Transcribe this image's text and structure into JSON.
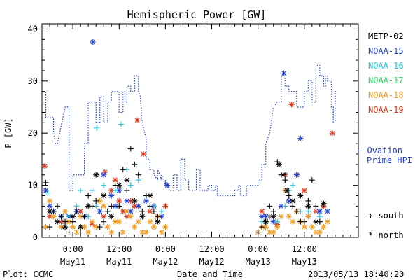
{
  "chart_data": {
    "type": "scatter",
    "title": "Hemispheric Power [GW]",
    "xlabel": "Date and Time",
    "ylabel": "P [GW]",
    "ylim": [
      0,
      41
    ],
    "xlim_hours": [
      -8,
      74
    ],
    "yticks": [
      "0",
      "10",
      "20",
      "30",
      "40"
    ],
    "xticks": [
      {
        "h": 0,
        "top": "0:00",
        "bottom": "May11"
      },
      {
        "h": 12,
        "top": "12:00",
        "bottom": "May11"
      },
      {
        "h": 24,
        "top": "0:00",
        "bottom": "May12"
      },
      {
        "h": 36,
        "top": "12:00",
        "bottom": "May12"
      },
      {
        "h": 48,
        "top": "0:00",
        "bottom": "May13"
      },
      {
        "h": 60,
        "top": "12:00",
        "bottom": "May13"
      }
    ],
    "x_units": "hours relative to 2013-05-11 00:00 UT",
    "legend": [
      {
        "name": "METP-02",
        "color": "#000000"
      },
      {
        "name": "NOAA-15",
        "color": "#1f3fd6"
      },
      {
        "name": "NOAA-16",
        "color": "#22c4e0"
      },
      {
        "name": "NOAA-17",
        "color": "#33dd66"
      },
      {
        "name": "NOAA-18",
        "color": "#f29a1d"
      },
      {
        "name": "NOAA-19",
        "color": "#e0341c"
      }
    ],
    "ovation_label": [
      "— Ovation",
      "Prime HPI"
    ],
    "ovation_color": "#2040d0",
    "marker_legend": [
      {
        "symbol": "+",
        "label": "south"
      },
      {
        "symbol": "*",
        "label": "north"
      }
    ],
    "ovation_series": [
      [
        -7.5,
        28
      ],
      [
        -7,
        28
      ],
      [
        -7,
        23
      ],
      [
        -5,
        23
      ],
      [
        -5,
        20
      ],
      [
        -4.5,
        18
      ],
      [
        -4,
        18
      ],
      [
        -2,
        25
      ],
      [
        -1,
        25
      ],
      [
        -1,
        9
      ],
      [
        0,
        9
      ],
      [
        0,
        12
      ],
      [
        3,
        12
      ],
      [
        3,
        18
      ],
      [
        4,
        18
      ],
      [
        4,
        26
      ],
      [
        6,
        26
      ],
      [
        6,
        22
      ],
      [
        7,
        22
      ],
      [
        7,
        27
      ],
      [
        8,
        27
      ],
      [
        8,
        22
      ],
      [
        9,
        22
      ],
      [
        9,
        26
      ],
      [
        10,
        26
      ],
      [
        10,
        28
      ],
      [
        12,
        28
      ],
      [
        12,
        24
      ],
      [
        13,
        24
      ],
      [
        13,
        28
      ],
      [
        13.5,
        28
      ],
      [
        13.5,
        26
      ],
      [
        14,
        26
      ],
      [
        14,
        29
      ],
      [
        15,
        29
      ],
      [
        15,
        28
      ],
      [
        16,
        28
      ],
      [
        16,
        31
      ],
      [
        17,
        31
      ],
      [
        17,
        28
      ],
      [
        17.5,
        27
      ],
      [
        18,
        22
      ],
      [
        19,
        19
      ],
      [
        19,
        15
      ],
      [
        20,
        15
      ],
      [
        20,
        13
      ],
      [
        21,
        13
      ],
      [
        21,
        12
      ],
      [
        22,
        11
      ],
      [
        22,
        13
      ],
      [
        23,
        11
      ],
      [
        23,
        12
      ],
      [
        24,
        10
      ],
      [
        24,
        11
      ],
      [
        25,
        9
      ],
      [
        26,
        9
      ],
      [
        26,
        12
      ],
      [
        27,
        12
      ],
      [
        27,
        9
      ],
      [
        28,
        9
      ],
      [
        28,
        15
      ],
      [
        29,
        15
      ],
      [
        29,
        11
      ],
      [
        30,
        11
      ],
      [
        30,
        9
      ],
      [
        32,
        9
      ],
      [
        32,
        13
      ],
      [
        33,
        13
      ],
      [
        33,
        9
      ],
      [
        35,
        9
      ],
      [
        35,
        10
      ],
      [
        36,
        10
      ],
      [
        36,
        9
      ],
      [
        37,
        9
      ],
      [
        37,
        10
      ],
      [
        37.5,
        10
      ],
      [
        37.5,
        8
      ],
      [
        42,
        8
      ],
      [
        42,
        9
      ],
      [
        43,
        9
      ],
      [
        43,
        10
      ],
      [
        43.5,
        10
      ],
      [
        43.5,
        8
      ],
      [
        45,
        8
      ],
      [
        45,
        10
      ],
      [
        48,
        10
      ],
      [
        48,
        11
      ],
      [
        49,
        11
      ],
      [
        49,
        14
      ],
      [
        50,
        14
      ],
      [
        50,
        18
      ],
      [
        51,
        20
      ],
      [
        52,
        25
      ],
      [
        53,
        26
      ],
      [
        54,
        26
      ],
      [
        54,
        31
      ],
      [
        55,
        31
      ],
      [
        55,
        29
      ],
      [
        56,
        29
      ],
      [
        56,
        28
      ],
      [
        58,
        28
      ],
      [
        58,
        25
      ],
      [
        60,
        25
      ],
      [
        60,
        28
      ],
      [
        61,
        28
      ],
      [
        61,
        30
      ],
      [
        62,
        30
      ],
      [
        62,
        26
      ],
      [
        63,
        26
      ],
      [
        63,
        33
      ],
      [
        64,
        33
      ],
      [
        64,
        31
      ],
      [
        65,
        31
      ],
      [
        65,
        29
      ],
      [
        65.5,
        29
      ],
      [
        65.5,
        31
      ],
      [
        66,
        31
      ],
      [
        66,
        30
      ],
      [
        67,
        30
      ],
      [
        67,
        25
      ],
      [
        67.5,
        25
      ],
      [
        67.5,
        22
      ],
      [
        68,
        22
      ],
      [
        68,
        28
      ],
      [
        68.5,
        28
      ]
    ],
    "observations": [
      {
        "sat": "NOAA-19",
        "marker": "*",
        "points": [
          [
            -7.3,
            13.7
          ],
          [
            -6,
            4
          ],
          [
            -3,
            3
          ],
          [
            -1,
            3
          ],
          [
            2,
            5
          ],
          [
            5,
            2.5
          ],
          [
            8,
            4
          ],
          [
            8.3,
            12.5
          ],
          [
            10,
            9
          ],
          [
            11,
            11
          ],
          [
            12,
            7
          ],
          [
            13,
            5
          ],
          [
            14,
            4
          ],
          [
            15,
            7
          ],
          [
            16,
            6
          ],
          [
            16.7,
            22.5
          ],
          [
            18.3,
            16
          ],
          [
            20,
            5
          ],
          [
            22,
            4
          ],
          [
            24,
            6
          ],
          [
            49,
            5
          ],
          [
            51,
            4
          ],
          [
            53,
            2.5
          ],
          [
            55,
            12
          ],
          [
            56.7,
            25.5
          ],
          [
            58,
            12
          ],
          [
            60,
            9
          ],
          [
            63,
            5
          ],
          [
            65,
            6
          ],
          [
            67.3,
            20
          ]
        ]
      },
      {
        "sat": "NOAA-15",
        "marker": "*",
        "points": [
          [
            -7,
            9
          ],
          [
            -6,
            6
          ],
          [
            -5,
            5
          ],
          [
            -3,
            4
          ],
          [
            -1,
            4
          ],
          [
            1,
            5
          ],
          [
            3,
            4
          ],
          [
            5.2,
            37.5
          ],
          [
            7,
            5
          ],
          [
            8,
            12
          ],
          [
            10,
            8
          ],
          [
            11,
            6
          ],
          [
            12,
            9
          ],
          [
            14,
            7
          ],
          [
            15,
            5
          ],
          [
            17,
            6
          ],
          [
            19,
            7
          ],
          [
            21,
            6
          ],
          [
            23,
            4
          ],
          [
            24.5,
            10
          ],
          [
            49,
            4
          ],
          [
            50,
            4
          ],
          [
            52,
            3
          ],
          [
            54,
            6
          ],
          [
            54.7,
            31.5
          ],
          [
            56,
            7
          ],
          [
            58,
            12
          ],
          [
            59,
            19
          ],
          [
            61,
            4
          ],
          [
            64,
            5
          ],
          [
            66,
            5
          ]
        ]
      },
      {
        "sat": "NOAA-16",
        "marker": "+",
        "points": [
          [
            -6.5,
            8.5
          ],
          [
            -5,
            5
          ],
          [
            -3,
            4
          ],
          [
            -1,
            4
          ],
          [
            0,
            3
          ],
          [
            1,
            6
          ],
          [
            2,
            9
          ],
          [
            4,
            4
          ],
          [
            5,
            9
          ],
          [
            6,
            6
          ],
          [
            6.2,
            21
          ],
          [
            8,
            10
          ],
          [
            11,
            9
          ],
          [
            12.5,
            21.7
          ],
          [
            14,
            13
          ],
          [
            15,
            10
          ],
          [
            16,
            14
          ],
          [
            17,
            11
          ],
          [
            19,
            8
          ],
          [
            21,
            6
          ],
          [
            23,
            5
          ],
          [
            49,
            3
          ],
          [
            51,
            4
          ],
          [
            53,
            3
          ],
          [
            55,
            6
          ],
          [
            56,
            9
          ],
          [
            57,
            10
          ],
          [
            59,
            5
          ],
          [
            61,
            5
          ],
          [
            64,
            4
          ]
        ]
      },
      {
        "sat": "NOAA-18",
        "marker": "*",
        "points": [
          [
            -7,
            2
          ],
          [
            -6,
            7
          ],
          [
            -5,
            4
          ],
          [
            -3,
            2
          ],
          [
            -2,
            5
          ],
          [
            -1,
            3
          ],
          [
            0,
            2
          ],
          [
            1,
            1
          ],
          [
            2,
            4
          ],
          [
            3,
            2
          ],
          [
            4,
            1
          ],
          [
            5,
            3
          ],
          [
            6,
            2
          ],
          [
            7,
            7
          ],
          [
            8,
            6
          ],
          [
            9,
            2
          ],
          [
            10,
            1
          ],
          [
            11,
            3
          ],
          [
            12,
            3
          ],
          [
            13,
            1
          ],
          [
            14,
            5
          ],
          [
            15,
            4
          ],
          [
            16,
            2
          ],
          [
            17,
            3
          ],
          [
            18,
            1
          ],
          [
            19,
            1
          ],
          [
            20,
            3
          ],
          [
            21,
            2
          ],
          [
            22,
            4
          ],
          [
            23,
            1
          ],
          [
            24,
            2
          ],
          [
            48,
            1
          ],
          [
            49,
            2
          ],
          [
            50,
            2
          ],
          [
            51,
            1
          ],
          [
            52,
            1
          ],
          [
            53,
            2
          ],
          [
            54,
            4
          ],
          [
            55,
            9
          ],
          [
            56,
            4
          ],
          [
            57,
            3
          ],
          [
            58,
            5
          ],
          [
            59,
            3
          ],
          [
            60,
            2
          ],
          [
            61,
            4
          ],
          [
            62,
            2
          ],
          [
            63,
            1
          ],
          [
            64,
            1
          ],
          [
            65,
            2
          ],
          [
            66,
            3
          ]
        ]
      },
      {
        "sat": "METP-02",
        "marker": "+",
        "points": [
          [
            -7,
            10.5
          ],
          [
            -6,
            2
          ],
          [
            -5,
            5
          ],
          [
            -4,
            6
          ],
          [
            -3,
            4
          ],
          [
            -2,
            3
          ],
          [
            -1,
            1
          ],
          [
            0,
            3
          ],
          [
            1,
            5
          ],
          [
            2,
            1
          ],
          [
            3,
            4
          ],
          [
            4,
            8
          ],
          [
            5,
            6
          ],
          [
            6,
            7
          ],
          [
            7,
            2
          ],
          [
            8,
            3
          ],
          [
            9,
            5
          ],
          [
            10,
            6
          ],
          [
            11,
            10
          ],
          [
            12,
            6
          ],
          [
            13,
            13
          ],
          [
            14,
            9
          ],
          [
            15,
            17
          ],
          [
            16,
            14
          ],
          [
            17,
            12
          ],
          [
            18,
            5
          ],
          [
            19,
            8
          ],
          [
            20,
            6
          ],
          [
            21,
            5
          ],
          [
            22,
            4
          ],
          [
            48,
            1
          ],
          [
            49,
            2
          ],
          [
            50,
            3
          ],
          [
            51,
            6
          ],
          [
            52,
            5
          ],
          [
            53,
            14.5
          ],
          [
            54,
            12
          ],
          [
            55,
            11
          ],
          [
            56,
            8
          ],
          [
            57,
            6
          ],
          [
            58,
            5
          ],
          [
            59,
            3
          ],
          [
            60,
            3
          ],
          [
            61,
            7
          ],
          [
            62,
            11
          ],
          [
            63,
            6
          ],
          [
            64,
            3
          ]
        ]
      },
      {
        "sat": "METP-02",
        "marker": "*",
        "points": [
          [
            -6,
            5
          ],
          [
            -4,
            3
          ],
          [
            -2,
            2
          ],
          [
            0,
            4
          ],
          [
            2,
            2
          ],
          [
            4,
            6
          ],
          [
            6,
            12
          ],
          [
            8,
            8
          ],
          [
            10,
            4
          ],
          [
            12,
            10
          ],
          [
            14,
            11
          ],
          [
            16,
            7
          ],
          [
            18,
            4
          ],
          [
            20,
            8
          ],
          [
            22,
            3
          ],
          [
            50,
            3
          ],
          [
            52,
            4
          ],
          [
            53.5,
            14
          ],
          [
            54.5,
            12
          ],
          [
            55.5,
            9
          ],
          [
            57,
            7
          ],
          [
            59,
            8
          ],
          [
            61,
            6
          ],
          [
            63,
            3
          ],
          [
            65,
            6.5
          ]
        ]
      }
    ],
    "footer_left": "Plot: CCMC",
    "footer_right": "2013/05/13 18:40:20"
  }
}
